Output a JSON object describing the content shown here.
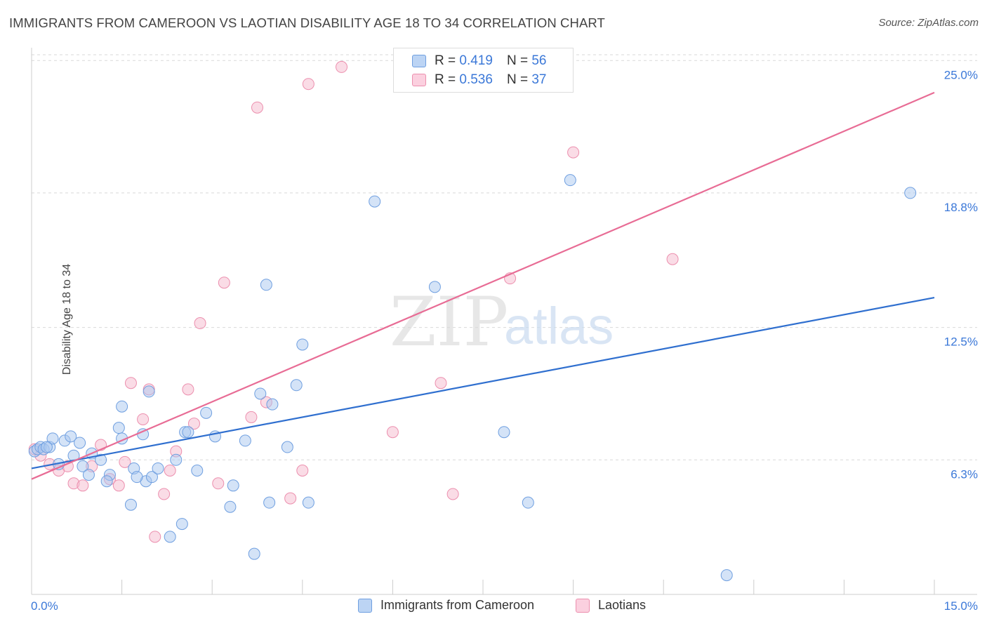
{
  "title": "IMMIGRANTS FROM CAMEROON VS LAOTIAN DISABILITY AGE 18 TO 34 CORRELATION CHART",
  "source": "Source: ZipAtlas.com",
  "watermark": {
    "zip": "ZIP",
    "atlas": "atlas"
  },
  "legend": {
    "r_label": "R =",
    "n_label": "N =",
    "series": [
      {
        "r": "0.419",
        "n": "56"
      },
      {
        "r": "0.536",
        "n": "37"
      }
    ]
  },
  "colors": {
    "blue_fill": "#a9c8f0",
    "blue_stroke": "#6f9fe0",
    "blue_line": "#2f6fcf",
    "pink_fill": "#f6b9cd",
    "pink_stroke": "#ec8fae",
    "pink_line": "#e86c95",
    "tick_text": "#3b78d8",
    "grid": "#d9d9d9"
  },
  "chart_data": {
    "type": "scatter",
    "title": "IMMIGRANTS FROM CAMEROON VS LAOTIAN DISABILITY AGE 18 TO 34 CORRELATION CHART",
    "xlabel": "",
    "ylabel": "Disability Age 18 to 34",
    "xlim": [
      0,
      15
    ],
    "ylim": [
      0,
      25.6
    ],
    "x_tick_labels": [
      "0.0%",
      "15.0%"
    ],
    "y_ticks": [
      6.3,
      12.5,
      18.8,
      25.0
    ],
    "y_tick_labels": [
      "6.3%",
      "12.5%",
      "18.8%",
      "25.0%"
    ],
    "grid": "horizontal dashed",
    "legend_position": "top-center",
    "series": [
      {
        "name": "Immigrants from Cameroon",
        "color": "#a9c8f0",
        "points": [
          [
            0.05,
            6.7
          ],
          [
            0.1,
            6.8
          ],
          [
            0.15,
            6.9
          ],
          [
            0.2,
            6.8
          ],
          [
            0.3,
            6.9
          ],
          [
            0.35,
            7.3
          ],
          [
            0.55,
            7.2
          ],
          [
            0.45,
            6.1
          ],
          [
            0.65,
            7.4
          ],
          [
            0.8,
            7.1
          ],
          [
            0.7,
            6.5
          ],
          [
            1.0,
            6.6
          ],
          [
            1.15,
            6.3
          ],
          [
            0.85,
            6.0
          ],
          [
            0.95,
            5.6
          ],
          [
            1.3,
            5.6
          ],
          [
            1.25,
            5.3
          ],
          [
            1.5,
            7.3
          ],
          [
            1.45,
            7.8
          ],
          [
            1.5,
            8.8
          ],
          [
            1.7,
            5.9
          ],
          [
            1.85,
            7.5
          ],
          [
            1.9,
            5.3
          ],
          [
            1.95,
            9.5
          ],
          [
            2.0,
            5.5
          ],
          [
            1.65,
            4.2
          ],
          [
            2.1,
            5.9
          ],
          [
            2.3,
            2.7
          ],
          [
            2.4,
            6.3
          ],
          [
            2.55,
            7.6
          ],
          [
            2.6,
            7.6
          ],
          [
            2.75,
            5.8
          ],
          [
            2.9,
            8.5
          ],
          [
            3.05,
            7.4
          ],
          [
            3.3,
            4.1
          ],
          [
            3.35,
            5.1
          ],
          [
            3.55,
            7.2
          ],
          [
            3.8,
            9.4
          ],
          [
            3.7,
            1.9
          ],
          [
            3.95,
            4.3
          ],
          [
            4.0,
            8.9
          ],
          [
            3.9,
            14.5
          ],
          [
            4.25,
            6.9
          ],
          [
            4.4,
            9.8
          ],
          [
            4.5,
            11.7
          ],
          [
            4.6,
            4.3
          ],
          [
            2.5,
            3.3
          ],
          [
            5.7,
            18.4
          ],
          [
            6.7,
            14.4
          ],
          [
            7.85,
            7.6
          ],
          [
            8.25,
            4.3
          ],
          [
            8.95,
            19.4
          ],
          [
            11.55,
            0.9
          ],
          [
            14.6,
            18.8
          ],
          [
            1.75,
            5.5
          ],
          [
            0.25,
            6.9
          ]
        ]
      },
      {
        "name": "Laotians",
        "color": "#f6b9cd",
        "points": [
          [
            0.05,
            6.8
          ],
          [
            0.15,
            6.5
          ],
          [
            0.3,
            6.1
          ],
          [
            0.45,
            5.8
          ],
          [
            0.6,
            6.0
          ],
          [
            0.7,
            5.2
          ],
          [
            0.85,
            5.1
          ],
          [
            1.0,
            6.0
          ],
          [
            1.15,
            7.0
          ],
          [
            1.3,
            5.4
          ],
          [
            1.45,
            5.1
          ],
          [
            1.55,
            6.2
          ],
          [
            1.65,
            9.9
          ],
          [
            1.85,
            8.2
          ],
          [
            1.95,
            9.6
          ],
          [
            2.05,
            2.7
          ],
          [
            2.2,
            4.7
          ],
          [
            2.3,
            5.8
          ],
          [
            2.4,
            6.7
          ],
          [
            2.6,
            9.6
          ],
          [
            2.7,
            8.0
          ],
          [
            2.8,
            12.7
          ],
          [
            3.1,
            5.2
          ],
          [
            3.2,
            14.6
          ],
          [
            3.65,
            8.3
          ],
          [
            3.75,
            22.8
          ],
          [
            3.9,
            9.0
          ],
          [
            4.3,
            4.5
          ],
          [
            4.5,
            5.8
          ],
          [
            4.6,
            23.9
          ],
          [
            5.15,
            24.7
          ],
          [
            6.0,
            7.6
          ],
          [
            6.8,
            9.9
          ],
          [
            7.0,
            4.7
          ],
          [
            7.95,
            14.8
          ],
          [
            9.0,
            20.7
          ],
          [
            10.65,
            15.7
          ]
        ]
      }
    ],
    "trendlines": [
      {
        "series": "Immigrants from Cameroon",
        "x": [
          0,
          15
        ],
        "y": [
          5.9,
          13.9
        ]
      },
      {
        "series": "Laotians",
        "x": [
          0,
          15
        ],
        "y": [
          5.4,
          23.5
        ]
      }
    ]
  }
}
